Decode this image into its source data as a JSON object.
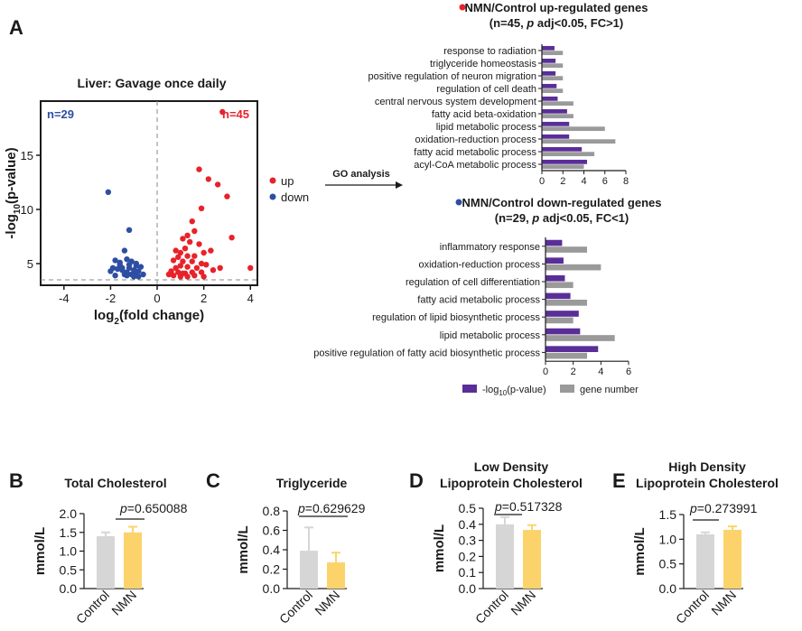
{
  "panel_labels": {
    "a": "A",
    "b": "B",
    "c": "C",
    "d": "D",
    "e": "E"
  },
  "colors": {
    "up": "#e8222a",
    "down": "#2e4ea3",
    "pval_bar": "#5a2e98",
    "gene_bar": "#9a9a9a",
    "control_bar": "#d6d6d6",
    "nmn_bar": "#fcd36b",
    "text": "#1a1a1a"
  },
  "volcano": {
    "title": "Liver: Gavage once daily",
    "n_down": "n=29",
    "n_up": "n=45",
    "xlabel_pre": "log",
    "xlabel_sub": "2",
    "xlabel_post": "(fold change)",
    "ylabel_pre": "-log",
    "ylabel_sub": "10",
    "ylabel_post": "(p-value)",
    "legend_up": "up",
    "legend_down": "down",
    "arrow_label": "GO analysis"
  },
  "go_up": {
    "header_line1": "NMN/Control up-regulated genes",
    "header_line2_pre": "(n=45, ",
    "header_line2_p": "p",
    "header_line2_post": " adj<0.05, FC>1)"
  },
  "go_down": {
    "header_line1": "NMN/Control down-regulated genes",
    "header_line2_pre": "(n=29, ",
    "header_line2_p": "p",
    "header_line2_post": " adj<0.05, FC<1)"
  },
  "go_legend": {
    "pval_pre": "-log",
    "pval_sub": "10",
    "pval_post": "(p-value)",
    "gene": "gene number"
  },
  "bar_panels": {
    "b": {
      "title": "Total Cholesterol",
      "p": "p",
      "pvalue": "=0.650088"
    },
    "c": {
      "title": "Triglyceride",
      "p": "p",
      "pvalue": "=0.629629"
    },
    "d": {
      "title_line1": "Low Density",
      "title_line2": "Lipoprotein Cholesterol",
      "p": "p",
      "pvalue": "=0.517328"
    },
    "e": {
      "title_line1": "High Density",
      "title_line2": "Lipoprotein Cholesterol",
      "p": "p",
      "pvalue": "=0.273991"
    }
  },
  "chart_data": [
    {
      "type": "scatter",
      "title": "Liver: Gavage once daily",
      "xlabel": "log2(fold change)",
      "ylabel": "-log10(p-value)",
      "xlim": [
        -5,
        4.3
      ],
      "ylim": [
        3,
        20
      ],
      "xticks": [
        -4,
        -2,
        0,
        2,
        4
      ],
      "yticks": [
        5,
        10,
        15
      ],
      "threshold_y": 3.5,
      "series": [
        {
          "name": "down",
          "points": [
            [
              -2.1,
              11.6
            ],
            [
              -1.2,
              8.1
            ],
            [
              -1.4,
              6.2
            ],
            [
              -1.8,
              5.3
            ],
            [
              -1.6,
              5.1
            ],
            [
              -1.3,
              5.4
            ],
            [
              -1.1,
              5.2
            ],
            [
              -0.9,
              5.0
            ],
            [
              -2.0,
              4.3
            ],
            [
              -1.9,
              4.6
            ],
            [
              -1.7,
              4.5
            ],
            [
              -1.5,
              4.4
            ],
            [
              -1.3,
              4.2
            ],
            [
              -1.2,
              4.6
            ],
            [
              -1.0,
              4.4
            ],
            [
              -0.8,
              4.3
            ],
            [
              -0.7,
              4.7
            ],
            [
              -0.9,
              4.8
            ],
            [
              -1.6,
              4.9
            ],
            [
              -1.4,
              4.0
            ],
            [
              -1.1,
              4.0
            ],
            [
              -0.6,
              4.0
            ],
            [
              -1.8,
              3.9
            ],
            [
              -1.3,
              3.9
            ],
            [
              -1.0,
              3.8
            ],
            [
              -0.8,
              3.8
            ],
            [
              -1.5,
              4.6
            ],
            [
              -1.2,
              4.9
            ],
            [
              -0.9,
              4.1
            ]
          ]
        },
        {
          "name": "up",
          "points": [
            [
              2.8,
              19.0
            ],
            [
              1.8,
              13.7
            ],
            [
              2.2,
              12.8
            ],
            [
              2.6,
              12.3
            ],
            [
              3.0,
              11.2
            ],
            [
              1.9,
              10.1
            ],
            [
              1.5,
              8.9
            ],
            [
              1.6,
              8.0
            ],
            [
              1.3,
              7.6
            ],
            [
              1.1,
              7.3
            ],
            [
              1.4,
              7.0
            ],
            [
              1.8,
              6.8
            ],
            [
              3.2,
              7.4
            ],
            [
              0.8,
              6.2
            ],
            [
              1.0,
              6.0
            ],
            [
              1.2,
              6.4
            ],
            [
              2.0,
              6.0
            ],
            [
              2.3,
              6.2
            ],
            [
              1.6,
              5.7
            ],
            [
              1.3,
              5.7
            ],
            [
              0.9,
              5.6
            ],
            [
              0.7,
              5.3
            ],
            [
              1.1,
              5.2
            ],
            [
              1.5,
              5.2
            ],
            [
              1.9,
              5.0
            ],
            [
              0.8,
              4.6
            ],
            [
              1.0,
              4.8
            ],
            [
              1.3,
              4.7
            ],
            [
              1.7,
              4.6
            ],
            [
              2.1,
              4.9
            ],
            [
              0.6,
              4.3
            ],
            [
              0.9,
              4.2
            ],
            [
              1.2,
              4.1
            ],
            [
              1.5,
              4.2
            ],
            [
              1.9,
              4.2
            ],
            [
              2.4,
              4.4
            ],
            [
              4.0,
              4.6
            ],
            [
              0.7,
              3.9
            ],
            [
              1.0,
              3.8
            ],
            [
              1.3,
              3.8
            ],
            [
              1.6,
              3.9
            ],
            [
              2.0,
              3.8
            ],
            [
              2.7,
              4.6
            ],
            [
              1.1,
              4.1
            ],
            [
              0.5,
              4.0
            ]
          ]
        }
      ]
    },
    {
      "type": "bar",
      "title": "NMN/Control up-regulated genes (n=45, p adj<0.05, FC>1)",
      "orientation": "horizontal",
      "categories": [
        "response to radiation",
        "triglyceride homeostasis",
        "positive regulation of neuron migration",
        "regulation of cell death",
        "central nervous system development",
        "fatty acid beta-oxidation",
        "lipid metabolic process",
        "oxidation-reduction process",
        "fatty acid metabolic process",
        "acyl-CoA metabolic process"
      ],
      "xlim": [
        0,
        8
      ],
      "xticks": [
        0,
        2,
        4,
        6,
        8
      ],
      "series": [
        {
          "name": "-log10(p-value)",
          "values": [
            1.2,
            1.3,
            1.3,
            1.4,
            1.5,
            2.4,
            2.6,
            2.6,
            3.8,
            4.3
          ]
        },
        {
          "name": "gene number",
          "values": [
            2,
            2,
            2,
            2,
            3,
            3,
            6,
            7,
            5,
            4
          ]
        }
      ]
    },
    {
      "type": "bar",
      "title": "NMN/Control down-regulated genes (n=29, p adj<0.05, FC<1)",
      "orientation": "horizontal",
      "categories": [
        "inflammatory response",
        "oxidation-reduction process",
        "regulation of cell differentiation",
        "fatty acid metabolic process",
        "regulation of lipid biosynthetic process",
        "lipid metabolic process",
        "positive regulation of fatty acid biosynthetic process"
      ],
      "xlim": [
        0,
        6
      ],
      "xticks": [
        0,
        2,
        4,
        6
      ],
      "series": [
        {
          "name": "-log10(p-value)",
          "values": [
            1.2,
            1.3,
            1.4,
            1.8,
            2.4,
            2.5,
            3.8
          ]
        },
        {
          "name": "gene number",
          "values": [
            3,
            4,
            2,
            3,
            2,
            5,
            3
          ]
        }
      ]
    },
    {
      "type": "bar",
      "title": "Total Cholesterol",
      "ylabel": "mmol/L",
      "categories": [
        "Control",
        "NMN"
      ],
      "values": [
        1.4,
        1.5
      ],
      "errors": [
        0.1,
        0.15
      ],
      "ylim": [
        0,
        2.0
      ],
      "yticks": [
        "0.0",
        "0.5",
        "1.0",
        "1.5",
        "2.0"
      ],
      "annotation": "p=0.650088"
    },
    {
      "type": "bar",
      "title": "Triglyceride",
      "ylabel": "mmol/L",
      "categories": [
        "Control",
        "NMN"
      ],
      "values": [
        0.39,
        0.27
      ],
      "errors": [
        0.24,
        0.1
      ],
      "ylim": [
        0,
        0.8
      ],
      "yticks": [
        "0.0",
        "0.2",
        "0.4",
        "0.6",
        "0.8"
      ],
      "annotation": "p=0.629629"
    },
    {
      "type": "bar",
      "title": "Low Density Lipoprotein Cholesterol",
      "ylabel": "mmol/L",
      "categories": [
        "Control",
        "NMN"
      ],
      "values": [
        0.4,
        0.365
      ],
      "errors": [
        0.045,
        0.03
      ],
      "ylim": [
        0,
        0.5
      ],
      "yticks": [
        "0.0",
        "0.1",
        "0.2",
        "0.3",
        "0.4",
        "0.5"
      ],
      "annotation": "p=0.517328"
    },
    {
      "type": "bar",
      "title": "High Density Lipoprotein Cholesterol",
      "ylabel": "mmol/L",
      "categories": [
        "Control",
        "NMN"
      ],
      "values": [
        1.1,
        1.19
      ],
      "errors": [
        0.04,
        0.07
      ],
      "ylim": [
        0,
        1.5
      ],
      "yticks": [
        "0.0",
        "0.5",
        "1.0",
        "1.5"
      ],
      "annotation": "p=0.273991"
    }
  ]
}
